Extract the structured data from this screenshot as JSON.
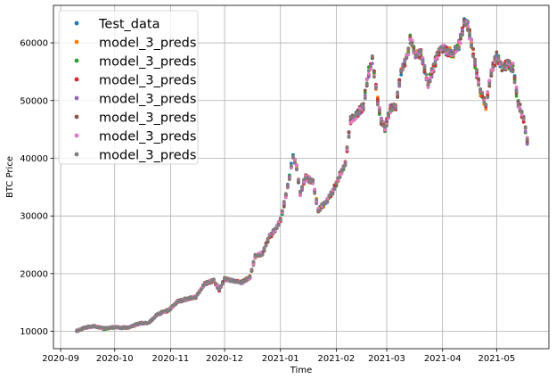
{
  "chart_data": {
    "type": "scatter",
    "xlabel": "Time",
    "ylabel": "BTC Price",
    "xlim": [
      "2020-08-28",
      "2021-05-30"
    ],
    "ylim": [
      7000,
      66500
    ],
    "x_ticks": [
      {
        "date": "2020-09-01",
        "label": "2020-09"
      },
      {
        "date": "2020-10-01",
        "label": "2020-10"
      },
      {
        "date": "2020-11-01",
        "label": "2020-11"
      },
      {
        "date": "2020-12-01",
        "label": "2020-12"
      },
      {
        "date": "2021-01-01",
        "label": "2021-01"
      },
      {
        "date": "2021-02-01",
        "label": "2021-02"
      },
      {
        "date": "2021-03-01",
        "label": "2021-03"
      },
      {
        "date": "2021-04-01",
        "label": "2021-04"
      },
      {
        "date": "2021-05-01",
        "label": "2021-05"
      }
    ],
    "y_ticks": [
      10000,
      20000,
      30000,
      40000,
      50000,
      60000
    ],
    "grid": true,
    "legend_position": "top-left",
    "base_series": [
      [
        "2020-09-10",
        10100
      ],
      [
        "2020-09-15",
        10700
      ],
      [
        "2020-09-20",
        10900
      ],
      [
        "2020-09-25",
        10500
      ],
      [
        "2020-10-01",
        10700
      ],
      [
        "2020-10-08",
        10600
      ],
      [
        "2020-10-15",
        11400
      ],
      [
        "2020-10-20",
        11500
      ],
      [
        "2020-10-25",
        13000
      ],
      [
        "2020-10-31",
        13700
      ],
      [
        "2020-11-05",
        15200
      ],
      [
        "2020-11-10",
        15600
      ],
      [
        "2020-11-15",
        16000
      ],
      [
        "2020-11-20",
        18200
      ],
      [
        "2020-11-25",
        18800
      ],
      [
        "2020-11-28",
        17200
      ],
      [
        "2020-12-01",
        19000
      ],
      [
        "2020-12-05",
        18900
      ],
      [
        "2020-12-10",
        18400
      ],
      [
        "2020-12-15",
        19300
      ],
      [
        "2020-12-18",
        23000
      ],
      [
        "2020-12-22",
        23500
      ],
      [
        "2020-12-26",
        26500
      ],
      [
        "2020-12-29",
        27500
      ],
      [
        "2021-01-01",
        29300
      ],
      [
        "2021-01-03",
        32000
      ],
      [
        "2021-01-06",
        36800
      ],
      [
        "2021-01-08",
        40500
      ],
      [
        "2021-01-10",
        38400
      ],
      [
        "2021-01-12",
        34000
      ],
      [
        "2021-01-15",
        36700
      ],
      [
        "2021-01-19",
        35900
      ],
      [
        "2021-01-22",
        31000
      ],
      [
        "2021-01-26",
        32300
      ],
      [
        "2021-01-30",
        34300
      ],
      [
        "2021-02-03",
        37000
      ],
      [
        "2021-02-06",
        39000
      ],
      [
        "2021-02-09",
        46500
      ],
      [
        "2021-02-12",
        47500
      ],
      [
        "2021-02-16",
        49000
      ],
      [
        "2021-02-19",
        55000
      ],
      [
        "2021-02-21",
        57000
      ],
      [
        "2021-02-24",
        49800
      ],
      [
        "2021-02-26",
        46400
      ],
      [
        "2021-02-28",
        45100
      ],
      [
        "2021-03-03",
        48500
      ],
      [
        "2021-03-06",
        49000
      ],
      [
        "2021-03-09",
        54800
      ],
      [
        "2021-03-12",
        57200
      ],
      [
        "2021-03-14",
        60500
      ],
      [
        "2021-03-17",
        58000
      ],
      [
        "2021-03-20",
        58200
      ],
      [
        "2021-03-24",
        52700
      ],
      [
        "2021-03-27",
        55800
      ],
      [
        "2021-03-30",
        58800
      ],
      [
        "2021-04-02",
        59000
      ],
      [
        "2021-04-06",
        58000
      ],
      [
        "2021-04-10",
        59500
      ],
      [
        "2021-04-13",
        63500
      ],
      [
        "2021-04-15",
        62900
      ],
      [
        "2021-04-17",
        60000
      ],
      [
        "2021-04-19",
        56300
      ],
      [
        "2021-04-22",
        51700
      ],
      [
        "2021-04-25",
        49000
      ],
      [
        "2021-04-28",
        54800
      ],
      [
        "2021-05-01",
        57700
      ],
      [
        "2021-05-04",
        55800
      ],
      [
        "2021-05-07",
        56400
      ],
      [
        "2021-05-10",
        55800
      ],
      [
        "2021-05-13",
        49500
      ],
      [
        "2021-05-16",
        46800
      ],
      [
        "2021-05-18",
        43000
      ]
    ],
    "series": [
      {
        "name": "Test_data",
        "color": "#1f77b4"
      },
      {
        "name": "model_3_preds",
        "color": "#ff7f0e"
      },
      {
        "name": "model_3_preds",
        "color": "#2ca02c"
      },
      {
        "name": "model_3_preds",
        "color": "#d62728"
      },
      {
        "name": "model_3_preds",
        "color": "#9467bd"
      },
      {
        "name": "model_3_preds",
        "color": "#8c564b"
      },
      {
        "name": "model_3_preds",
        "color": "#e377c2"
      },
      {
        "name": "model_3_preds",
        "color": "#7f7f7f"
      }
    ]
  }
}
